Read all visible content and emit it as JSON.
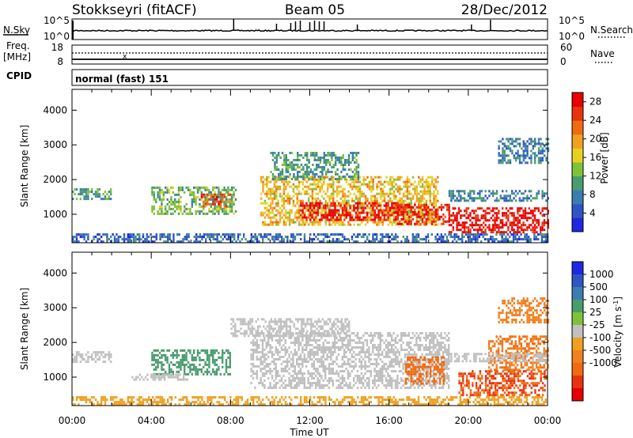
{
  "header": {
    "station": "Stokkseyri (fitACF)",
    "beam": "Beam 05",
    "date": "28/Dec/2012"
  },
  "top_strip": {
    "nsky_label": "N.Sky",
    "nsky_ticks": [
      "10^5",
      "10^0"
    ],
    "nsearch_label": "N.Search",
    "nsearch_ticks": [
      "10^5",
      "10^0"
    ],
    "freq_label": "Freq.",
    "freq_unit": "[MHz]",
    "freq_ticks": [
      "18",
      "8"
    ],
    "nave_label": "Nave",
    "nave_ticks": [
      "60",
      "0"
    ],
    "cpid_label": "CPID",
    "cpid_value": "normal (fast) 151"
  },
  "colors": {
    "power": [
      "#1e28e0",
      "#2f55c4",
      "#3a7db0",
      "#4a9c6e",
      "#7fc23a",
      "#e8d020",
      "#f0a020",
      "#f06a10",
      "#e83210",
      "#e80000"
    ],
    "velocity_pos": [
      "#1e28e0",
      "#2f55c4",
      "#3a7db0",
      "#4a9c6e",
      "#7fc23a"
    ],
    "velocity_neg": [
      "#f0a020",
      "#f08020",
      "#f06a10",
      "#e83210",
      "#e80000"
    ],
    "velocity_ground": "#c0c0c0"
  },
  "chart_data": [
    {
      "type": "heatmap",
      "parameter": "power",
      "ylabel": "Slant Range [km]",
      "y_ticks": [
        "1000",
        "2000",
        "3000",
        "4000"
      ],
      "ylim": [
        180,
        4600
      ],
      "xlim": [
        0,
        24
      ],
      "colorbar_label": "Power [dB]",
      "colorbar_ticks": [
        "4",
        "8",
        "12",
        "16",
        "20",
        "24",
        "28"
      ],
      "colorbar_range": [
        0,
        30
      ],
      "echo_regions": [
        {
          "t0": 0.0,
          "t1": 2.0,
          "r0": 1450,
          "r1": 1750,
          "value": 10
        },
        {
          "t0": 4.0,
          "t1": 8.3,
          "r0": 1000,
          "r1": 1800,
          "value": 12
        },
        {
          "t0": 6.5,
          "t1": 8.0,
          "r0": 1200,
          "r1": 1600,
          "value": 24
        },
        {
          "t0": 9.5,
          "t1": 18.5,
          "r0": 700,
          "r1": 2100,
          "value": 18
        },
        {
          "t0": 11.5,
          "t1": 16.5,
          "r0": 850,
          "r1": 1350,
          "value": 28
        },
        {
          "t0": 16.3,
          "t1": 19.0,
          "r0": 750,
          "r1": 1300,
          "value": 26
        },
        {
          "t0": 10.0,
          "t1": 14.5,
          "r0": 2000,
          "r1": 2800,
          "value": 10
        },
        {
          "t0": 19.0,
          "t1": 24.0,
          "r0": 1400,
          "r1": 1700,
          "value": 8
        },
        {
          "t0": 19.0,
          "t1": 24.0,
          "r0": 450,
          "r1": 1200,
          "value": 28
        },
        {
          "t0": 21.5,
          "t1": 24.0,
          "r0": 2500,
          "r1": 3200,
          "value": 8
        },
        {
          "t0": 0.0,
          "t1": 24.0,
          "r0": 200,
          "r1": 450,
          "value": 6
        }
      ]
    },
    {
      "type": "heatmap",
      "parameter": "velocity",
      "ylabel": "Slant Range [km]",
      "y_ticks": [
        "1000",
        "2000",
        "3000",
        "4000"
      ],
      "ylim": [
        180,
        4600
      ],
      "xlim": [
        0,
        24
      ],
      "xlabel": "Time UT",
      "x_ticks": [
        "00:00",
        "04:00",
        "08:00",
        "12:00",
        "16:00",
        "20:00",
        "00:00"
      ],
      "colorbar_label": "Velocity [m s-1]",
      "colorbar_ticks": [
        "1000",
        "500",
        "100",
        "25",
        "-25",
        "-100",
        "-500",
        "-1000"
      ],
      "echo_regions": [
        {
          "t0": 0.0,
          "t1": 2.0,
          "r0": 1450,
          "r1": 1750,
          "value": 0
        },
        {
          "t0": 4.0,
          "t1": 8.0,
          "r0": 1050,
          "r1": 1800,
          "value": 150
        },
        {
          "t0": 3.0,
          "t1": 6.0,
          "r0": 900,
          "r1": 1100,
          "value": 0
        },
        {
          "t0": 9.0,
          "t1": 19.0,
          "r0": 700,
          "r1": 2300,
          "value": 0
        },
        {
          "t0": 8.0,
          "t1": 14.0,
          "r0": 2200,
          "r1": 2700,
          "value": 0
        },
        {
          "t0": 16.8,
          "t1": 18.8,
          "r0": 800,
          "r1": 1600,
          "value": -300
        },
        {
          "t0": 19.5,
          "t1": 24.0,
          "r0": 450,
          "r1": 1200,
          "value": -400
        },
        {
          "t0": 21.0,
          "t1": 24.0,
          "r0": 1200,
          "r1": 2200,
          "value": -200
        },
        {
          "t0": 21.5,
          "t1": 24.0,
          "r0": 2600,
          "r1": 3300,
          "value": -150
        },
        {
          "t0": 19.0,
          "t1": 24.0,
          "r0": 1450,
          "r1": 1700,
          "value": 0
        },
        {
          "t0": 0.0,
          "t1": 24.0,
          "r0": 200,
          "r1": 450,
          "value": -60
        }
      ]
    }
  ]
}
